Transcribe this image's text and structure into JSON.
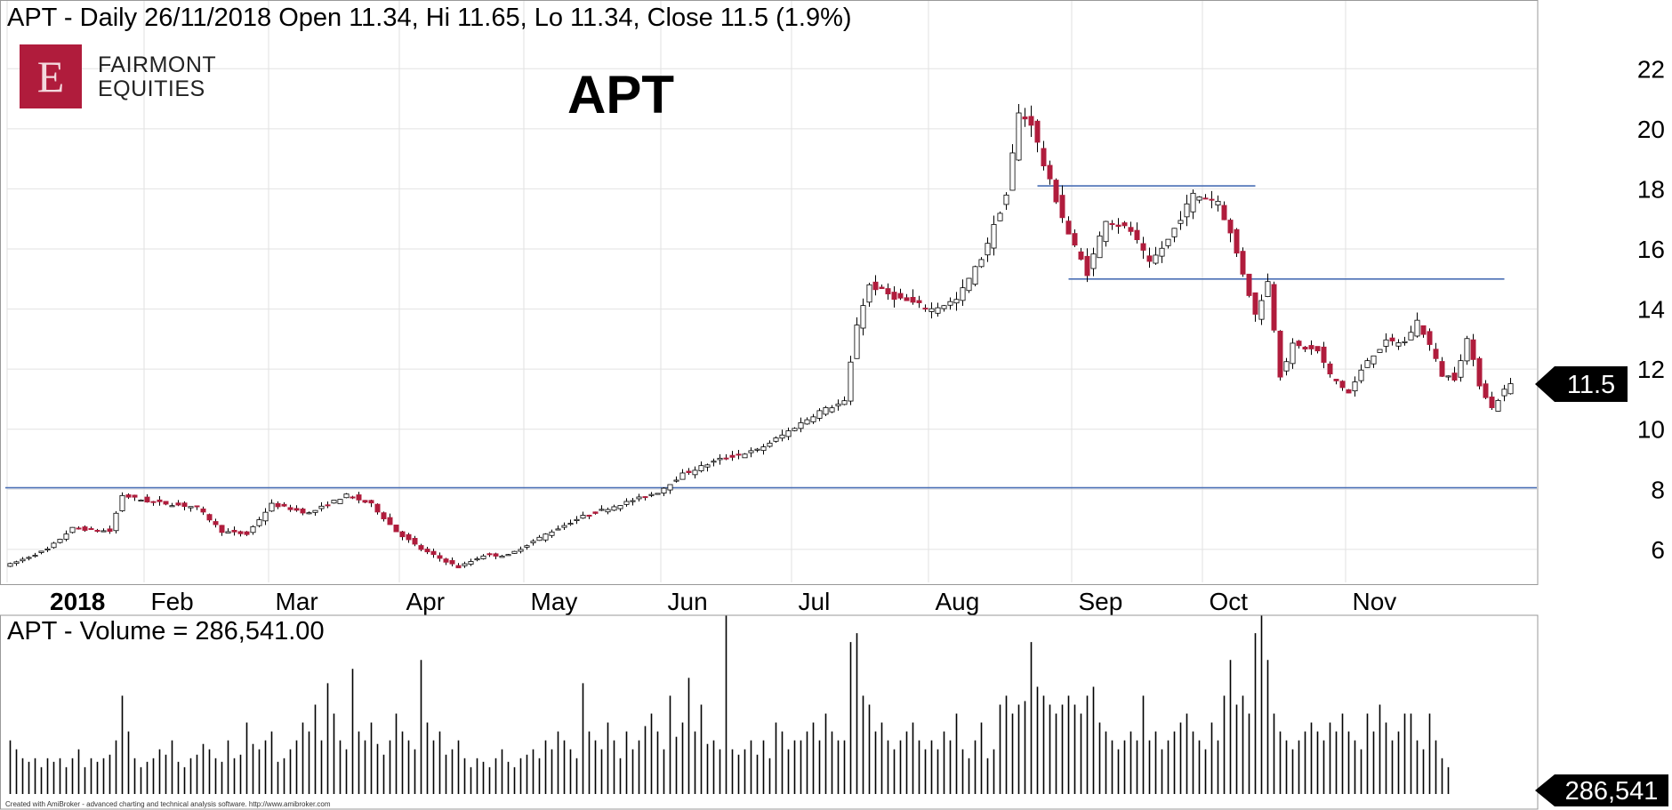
{
  "header": {
    "symbol": "APT",
    "text": "APT - Daily 26/11/2018 Open 11.34, Hi 11.65, Lo 11.34, Close 11.5 (1.9%)"
  },
  "logo": {
    "letter": "E",
    "line1": "FAIRMONT",
    "line2": "EQUITIES"
  },
  "big_title": "APT",
  "volume_header": "APT - Volume = 286,541.00",
  "credit": "Created with AmiBroker - advanced charting and technical analysis software. http://www.amibroker.com",
  "colors": {
    "up_fill": "#ffffff",
    "down_fill": "#b01c3c",
    "outline": "#000000",
    "hline": "#4a6fb5",
    "grid": "#e2e2e2"
  },
  "chart_data": [
    {
      "type": "candlestick",
      "title": "APT - Daily 26/11/2018 Open 11.34, Hi 11.65, Lo 11.34, Close 11.5 (1.9%)",
      "ylim": [
        4.9,
        23.4
      ],
      "yticks": [
        6,
        8,
        10,
        12,
        14,
        16,
        18,
        20,
        22
      ],
      "month_labels": [
        "2018",
        "Feb",
        "Mar",
        "Apr",
        "May",
        "Jun",
        "Jul",
        "Aug",
        "Sep",
        "Oct",
        "Nov"
      ],
      "month_start_index": [
        0,
        22,
        42,
        63,
        83,
        105,
        126,
        148,
        171,
        192,
        215
      ],
      "last_price_label": "11.5",
      "last_price": 11.5,
      "horizontal_lines": [
        {
          "y": 8.05,
          "x_from_index": 0,
          "x_to_index": 290
        },
        {
          "y": 18.1,
          "x_from_index": 165,
          "x_to_index": 200
        },
        {
          "y": 15.0,
          "x_from_index": 170,
          "x_to_index": 240
        }
      ],
      "grid": true,
      "path": [
        [
          0,
          5.5
        ],
        [
          6,
          6.0
        ],
        [
          10,
          6.7
        ],
        [
          16,
          6.6
        ],
        [
          18,
          7.8
        ],
        [
          22,
          7.6
        ],
        [
          30,
          7.4
        ],
        [
          34,
          6.6
        ],
        [
          38,
          6.5
        ],
        [
          42,
          7.5
        ],
        [
          48,
          7.2
        ],
        [
          54,
          7.8
        ],
        [
          58,
          7.5
        ],
        [
          62,
          6.6
        ],
        [
          66,
          6.0
        ],
        [
          72,
          5.4
        ],
        [
          76,
          5.8
        ],
        [
          80,
          5.8
        ],
        [
          86,
          6.5
        ],
        [
          92,
          7.1
        ],
        [
          98,
          7.5
        ],
        [
          104,
          7.9
        ],
        [
          108,
          8.5
        ],
        [
          114,
          9.0
        ],
        [
          120,
          9.3
        ],
        [
          124,
          9.8
        ],
        [
          130,
          10.6
        ],
        [
          134,
          10.9
        ],
        [
          136,
          13.5
        ],
        [
          138,
          14.8
        ],
        [
          142,
          14.4
        ],
        [
          148,
          14.0
        ],
        [
          152,
          14.3
        ],
        [
          156,
          15.7
        ],
        [
          160,
          17.8
        ],
        [
          162,
          20.5
        ],
        [
          164,
          20.2
        ],
        [
          166,
          18.8
        ],
        [
          170,
          16.5
        ],
        [
          173,
          15.2
        ],
        [
          176,
          17.0
        ],
        [
          180,
          16.6
        ],
        [
          183,
          15.5
        ],
        [
          186,
          16.3
        ],
        [
          190,
          17.8
        ],
        [
          194,
          17.6
        ],
        [
          196,
          16.5
        ],
        [
          198,
          15.2
        ],
        [
          200,
          13.8
        ],
        [
          202,
          14.9
        ],
        [
          204,
          11.8
        ],
        [
          206,
          12.8
        ],
        [
          210,
          12.6
        ],
        [
          212,
          11.8
        ],
        [
          215,
          11.2
        ],
        [
          218,
          12.3
        ],
        [
          221,
          12.9
        ],
        [
          224,
          12.9
        ],
        [
          226,
          13.6
        ],
        [
          228,
          12.8
        ],
        [
          230,
          11.8
        ],
        [
          232,
          11.7
        ],
        [
          234,
          13.0
        ],
        [
          236,
          11.5
        ],
        [
          238,
          10.7
        ],
        [
          240,
          11.3
        ],
        [
          241,
          11.5
        ]
      ]
    },
    {
      "type": "bar",
      "title": "APT - Volume = 286,541.00",
      "last_value_label": "286,541",
      "relative_volume": [
        0.3,
        0.25,
        0.2,
        0.18,
        0.2,
        0.15,
        0.2,
        0.18,
        0.2,
        0.15,
        0.2,
        0.25,
        0.15,
        0.2,
        0.18,
        0.2,
        0.22,
        0.3,
        0.55,
        0.35,
        0.2,
        0.15,
        0.18,
        0.2,
        0.25,
        0.22,
        0.3,
        0.18,
        0.15,
        0.2,
        0.22,
        0.28,
        0.25,
        0.2,
        0.18,
        0.3,
        0.2,
        0.22,
        0.4,
        0.28,
        0.25,
        0.3,
        0.35,
        0.18,
        0.2,
        0.25,
        0.3,
        0.4,
        0.35,
        0.5,
        0.3,
        0.62,
        0.45,
        0.3,
        0.25,
        0.7,
        0.35,
        0.3,
        0.4,
        0.28,
        0.22,
        0.3,
        0.45,
        0.35,
        0.3,
        0.25,
        0.75,
        0.4,
        0.3,
        0.35,
        0.22,
        0.25,
        0.3,
        0.2,
        0.15,
        0.2,
        0.18,
        0.15,
        0.2,
        0.25,
        0.18,
        0.15,
        0.2,
        0.22,
        0.25,
        0.2,
        0.3,
        0.25,
        0.35,
        0.3,
        0.25,
        0.2,
        0.62,
        0.35,
        0.3,
        0.25,
        0.4,
        0.3,
        0.2,
        0.35,
        0.25,
        0.3,
        0.38,
        0.45,
        0.35,
        0.25,
        0.55,
        0.32,
        0.4,
        0.65,
        0.35,
        0.5,
        0.28,
        0.3,
        0.25,
        1.0,
        0.25,
        0.22,
        0.25,
        0.3,
        0.22,
        0.3,
        0.2,
        0.4,
        0.35,
        0.25,
        0.3,
        0.3,
        0.35,
        0.4,
        0.3,
        0.45,
        0.35,
        0.3,
        0.3,
        0.85,
        0.9,
        0.55,
        0.5,
        0.35,
        0.4,
        0.3,
        0.25,
        0.3,
        0.35,
        0.4,
        0.3,
        0.25,
        0.3,
        0.25,
        0.35,
        0.3,
        0.45,
        0.25,
        0.2,
        0.3,
        0.4,
        0.2,
        0.25,
        0.5,
        0.55,
        0.45,
        0.5,
        0.52,
        0.85,
        0.6,
        0.55,
        0.5,
        0.45,
        0.5,
        0.55,
        0.5,
        0.45,
        0.55,
        0.6,
        0.4,
        0.35,
        0.3,
        0.25,
        0.3,
        0.35,
        0.3,
        0.55,
        0.3,
        0.35,
        0.25,
        0.3,
        0.35,
        0.4,
        0.45,
        0.35,
        0.3,
        0.25,
        0.4,
        0.3,
        0.55,
        0.75,
        0.5,
        0.55,
        0.45,
        0.9,
        1.0,
        0.75,
        0.45,
        0.35,
        0.3,
        0.25,
        0.3,
        0.35,
        0.4,
        0.35,
        0.3,
        0.4,
        0.35,
        0.45,
        0.35,
        0.3,
        0.25,
        0.45,
        0.35,
        0.5,
        0.4,
        0.3,
        0.35,
        0.45,
        0.45,
        0.3,
        0.25,
        0.45,
        0.3,
        0.2,
        0.15
      ]
    }
  ]
}
